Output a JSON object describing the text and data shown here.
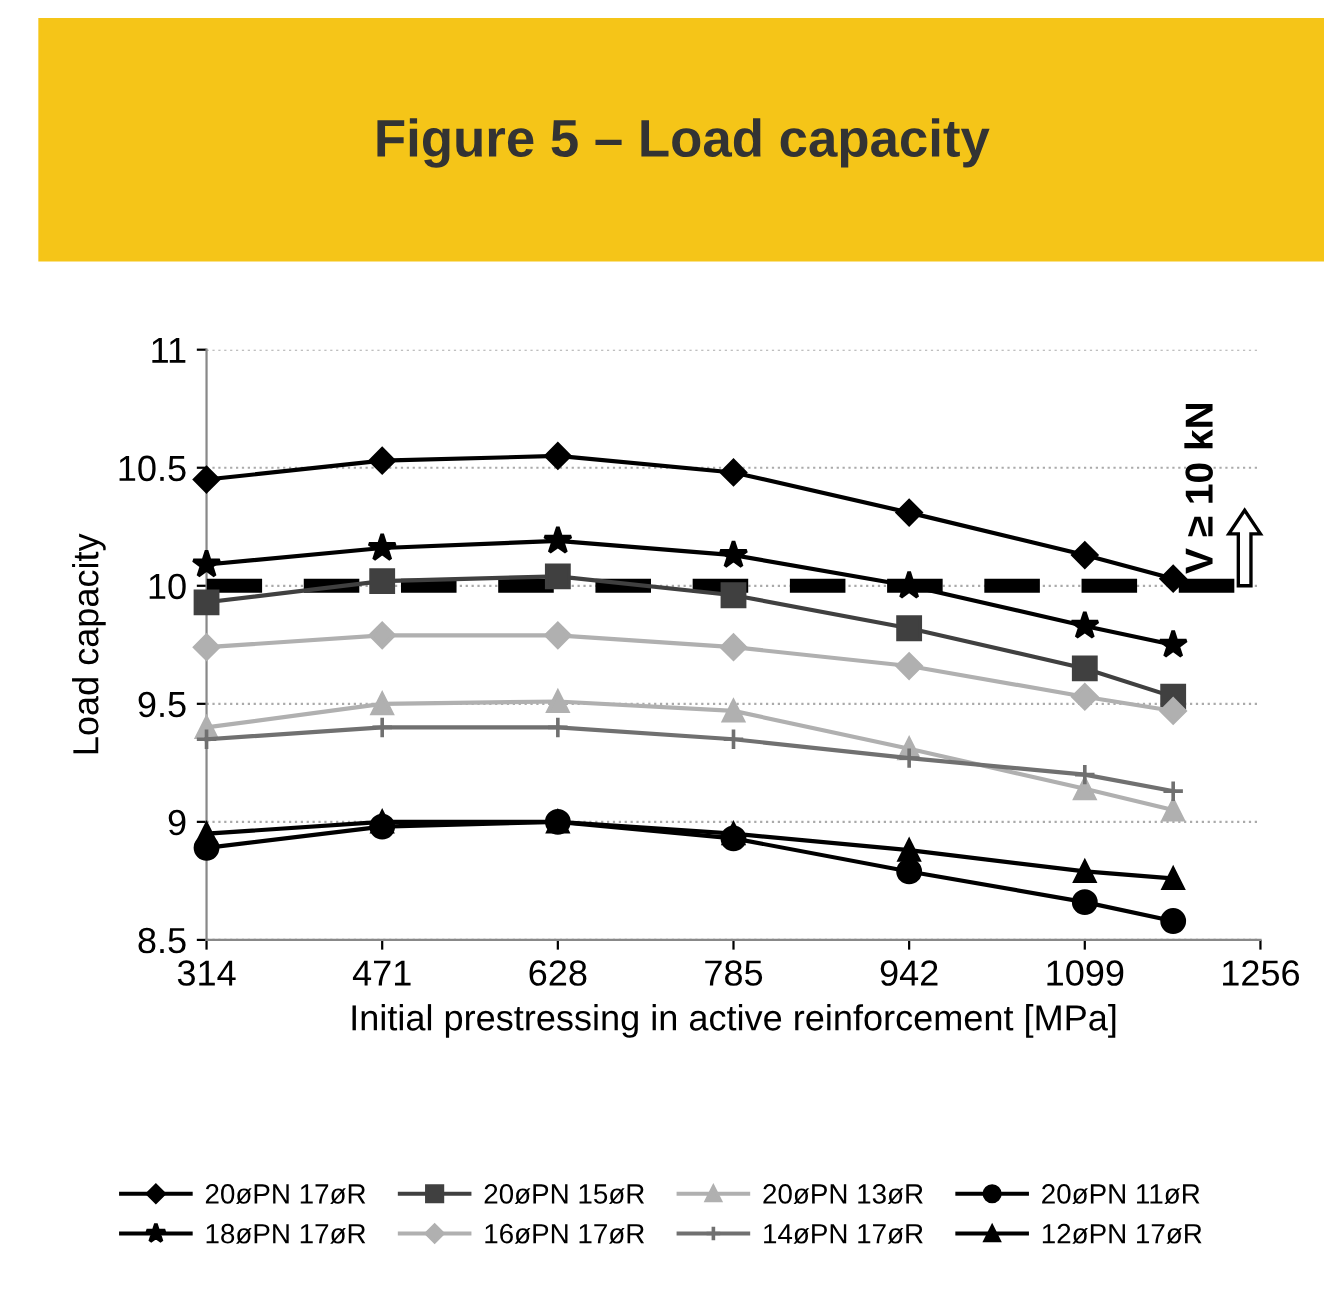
{
  "chart_data": {
    "type": "line",
    "title": "Figure 5 – Load capacity",
    "xlabel": "Initial prestressing in active reinforcement [MPa]",
    "ylabel": "Load capacity",
    "x": [
      314,
      471,
      628,
      785,
      942,
      1099,
      1178
    ],
    "xlim": [
      314,
      1256
    ],
    "xticks": [
      314,
      471,
      628,
      785,
      942,
      1099,
      1256
    ],
    "ylim": [
      8.5,
      11
    ],
    "yticks": [
      8.5,
      9,
      {
        "value": 9.5,
        "label": "9.5"
      },
      10,
      {
        "value": 10.5,
        "label": "10.5"
      },
      11
    ],
    "grid": "y",
    "legend": "bottom",
    "line_style": "solid",
    "ref_lines": [
      {
        "axis": "y",
        "value": 10,
        "label": "V ≥ 10 kN",
        "color": "#000000",
        "line_style": "dashed"
      }
    ],
    "series": [
      {
        "name": "20øPN 17øR",
        "color": "#000000",
        "marker": "diamond",
        "values": [
          10.45,
          10.53,
          10.55,
          10.48,
          10.31,
          10.13,
          10.03
        ]
      },
      {
        "name": "20øPN 15øR",
        "color": "#404040",
        "marker": "square",
        "values": [
          9.93,
          10.02,
          10.04,
          9.96,
          9.82,
          9.65,
          9.53
        ]
      },
      {
        "name": "20øPN 13øR",
        "color": "#b0b0b0",
        "marker": "triangle",
        "values": [
          9.4,
          9.5,
          9.51,
          9.47,
          9.31,
          9.14,
          9.05
        ]
      },
      {
        "name": "20øPN 11øR",
        "color": "#000000",
        "marker": "circle",
        "values": [
          8.89,
          8.98,
          9.0,
          8.93,
          8.79,
          8.66,
          8.58
        ]
      },
      {
        "name": "18øPN 17øR",
        "color": "#000000",
        "marker": "star",
        "values": [
          10.09,
          10.16,
          10.19,
          10.13,
          10.0,
          9.83,
          9.75
        ]
      },
      {
        "name": "16øPN 17øR",
        "color": "#b0b0b0",
        "marker": "diamond",
        "values": [
          9.74,
          9.79,
          9.79,
          9.74,
          9.66,
          9.53,
          9.47
        ]
      },
      {
        "name": "14øPN 17øR",
        "color": "#707070",
        "marker": "cross",
        "values": [
          9.35,
          9.4,
          9.4,
          9.35,
          9.27,
          9.2,
          9.13
        ]
      },
      {
        "name": "12øPN 17øR",
        "color": "#000000",
        "marker": "triangle",
        "values": [
          8.95,
          9.0,
          9.0,
          8.95,
          8.88,
          8.79,
          8.76
        ]
      }
    ]
  }
}
